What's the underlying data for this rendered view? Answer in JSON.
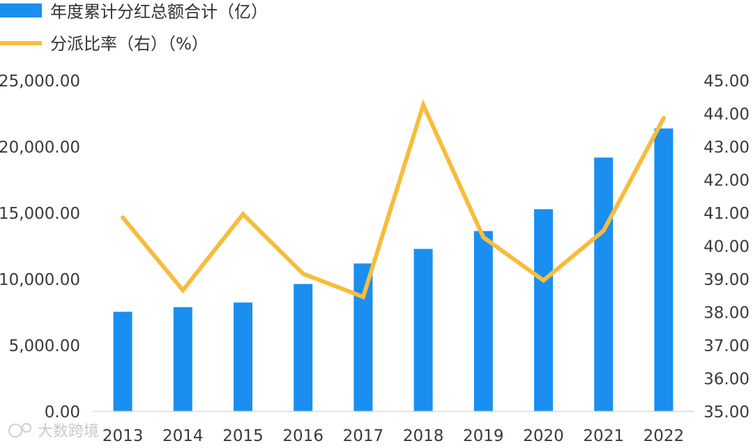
{
  "chart_data": {
    "type": "bar+line",
    "categories": [
      "2013",
      "2014",
      "2015",
      "2016",
      "2017",
      "2018",
      "2019",
      "2020",
      "2021",
      "2022"
    ],
    "series": [
      {
        "name": "年度累计分红总额合计（亿）",
        "type": "bar",
        "axis": "left",
        "color": "#1a8ff0",
        "values": [
          7500,
          7850,
          8200,
          9600,
          11150,
          12250,
          13600,
          15250,
          19150,
          21350
        ]
      },
      {
        "name": "分派比率（右）（%）",
        "type": "line",
        "axis": "right",
        "color": "#f8bc3c",
        "values": [
          40.85,
          38.65,
          40.95,
          39.15,
          38.45,
          44.25,
          40.25,
          38.95,
          40.45,
          43.85
        ]
      }
    ],
    "y_left": {
      "ylim": [
        0,
        25000
      ],
      "ticks": [
        "0.00",
        "5,000.00",
        "10,000.00",
        "15,000.00",
        "20,000.00",
        "25,000.00"
      ]
    },
    "y_right": {
      "ylim": [
        35,
        45
      ],
      "ticks": [
        "35.00",
        "36.00",
        "37.00",
        "38.00",
        "39.00",
        "40.00",
        "41.00",
        "42.00",
        "43.00",
        "44.00",
        "45.00"
      ]
    },
    "grid": false,
    "legend": "top-left"
  },
  "watermark": "大数跨境"
}
